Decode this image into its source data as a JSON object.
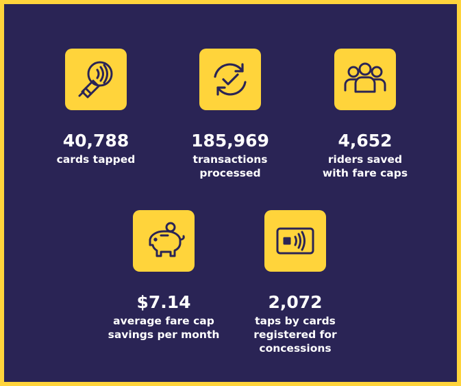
{
  "colors": {
    "background": "#2a2455",
    "accent": "#ffd43b",
    "text": "#ffffff",
    "icon_stroke": "#2a2455"
  },
  "stats": [
    {
      "icon": "card-tap-icon",
      "value": "40,788",
      "label_lines": [
        "cards tapped"
      ]
    },
    {
      "icon": "refresh-check-icon",
      "value": "185,969",
      "label_lines": [
        "transactions",
        "processed"
      ]
    },
    {
      "icon": "people-group-icon",
      "value": "4,652",
      "label_lines": [
        "riders saved",
        "with fare caps"
      ]
    },
    {
      "icon": "piggy-bank-icon",
      "value": "$7.14",
      "label_lines": [
        "average fare cap",
        "savings per month"
      ]
    },
    {
      "icon": "contactless-card-icon",
      "value": "2,072",
      "label_lines": [
        "taps by cards",
        "registered for",
        "concessions"
      ]
    }
  ]
}
